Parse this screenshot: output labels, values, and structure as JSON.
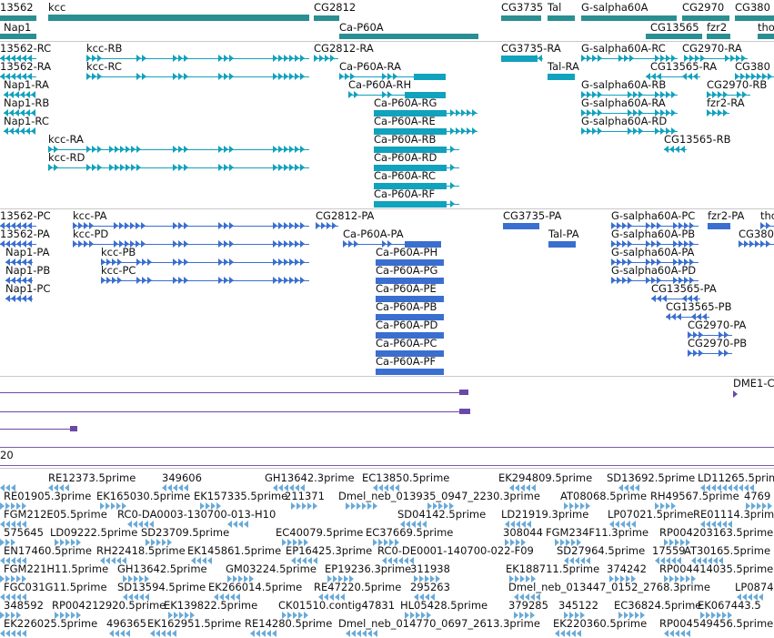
{
  "colors": {
    "gene": "#2a8f93",
    "transcript": "#11a2bd",
    "protein": "#3a6fd0",
    "track_purple": "#6b48a8",
    "est": "#6aaad8",
    "separator": "#c9c9c9"
  },
  "genes": {
    "labels": [
      "13562",
      "kcc",
      "CG2812",
      "CG3735",
      "Tal",
      "G-salpha60A",
      "CG2970",
      "CG380",
      "Nap1",
      "Ca-P60A",
      "CG13565",
      "fzr2",
      "tho"
    ]
  },
  "transcripts": {
    "labels": [
      "13562-RC",
      "kcc-RB",
      "CG2812-RA",
      "CG3735-RA",
      "G-salpha60A-RC",
      "CG2970-RA",
      "13562-RA",
      "kcc-RC",
      "Ca-P60A-RA",
      "Tal-RA",
      "CG13565-RA",
      "CG380",
      "Nap1-RA",
      "Ca-P60A-RH",
      "G-salpha60A-RB",
      "CG2970-RB",
      "Nap1-RB",
      "Ca-P60A-RG",
      "G-salpha60A-RA",
      "fzr2-RA",
      "Nap1-RC",
      "Ca-P60A-RE",
      "G-salpha60A-RD",
      "kcc-RA",
      "Ca-P60A-RB",
      "CG13565-RB",
      "kcc-RD",
      "Ca-P60A-RD",
      "Ca-P60A-RC",
      "Ca-P60A-RF"
    ]
  },
  "proteins": {
    "labels": [
      "13562-PC",
      "kcc-PA",
      "CG2812-PA",
      "CG3735-PA",
      "G-salpha60A-PC",
      "fzr2-PA",
      "tho",
      "13562-PA",
      "kcc-PD",
      "Ca-P60A-PA",
      "Tal-PA",
      "G-salpha60A-PB",
      "CG380",
      "Nap1-PA",
      "kcc-PB",
      "Ca-P60A-PH",
      "G-salpha60A-PA",
      "Nap1-PB",
      "kcc-PC",
      "Ca-P60A-PG",
      "G-salpha60A-PD",
      "Nap1-PC",
      "Ca-P60A-PE",
      "CG13565-PA",
      "Ca-P60A-PB",
      "CG13565-PB",
      "Ca-P60A-PD",
      "CG2970-PA",
      "Ca-P60A-PC",
      "CG2970-PB",
      "Ca-P60A-PF"
    ]
  },
  "tracks": {
    "dme_label": "DME1-C",
    "scale_label": "20"
  },
  "ests": {
    "labels": [
      "RE12373.5prime",
      "349606",
      "GH13642.3prime",
      "EC13850.5prime",
      "EK294809.5prime",
      "SD13692.5prime",
      "LD11265.5prime",
      "RE01905.3prime",
      "EK165030.5prime",
      "EK157335.5prime",
      "211371",
      "Dmel_neb_013935_0947_2230.3prime",
      "AT08068.5prime",
      "RH49567.5prime",
      "4769",
      "FGM212E05.5prime",
      "RC0-DA0003-130700-013-H10",
      "SD04142.5prime",
      "LD21919.3prime",
      "LP07021.5prime",
      "RE01114.3prime",
      "575645",
      "LD09222.5prime",
      "SD23709.5prime",
      "EC40079.5prime",
      "EC37669.5prime",
      "308044",
      "FGM234F11.3prime",
      "RP004203163.5prime",
      "EN17460.5prime",
      "RH22418.5prime",
      "EK145861.5prime",
      "EP16425.3prime",
      "RC0-DE0001-140700-022-F09",
      "SD27964.5prime",
      "17559",
      "AT30165.5prime",
      "FGM221H11.5prime",
      "GH13642.5prime",
      "GM03224.5prime",
      "EP19236.3prime",
      "311938",
      "EK188711.5prime",
      "374242",
      "RP004414035.5prime",
      "FGC031G11.5prime",
      "SD13594.5prime",
      "EK266014.5prime",
      "RE47220.5prime",
      "295263",
      "Dmel_neb_013447_0152_2768.3prime",
      "LP0874",
      "348592",
      "RP004212920.5prime",
      "EK139822.5prime",
      "CK01510.contig47831",
      "HL05428.5prime",
      "379285",
      "345122",
      "EC36824.5prime",
      "EK067443.5",
      "EK226025.5prime",
      "496365",
      "EK162951.5prime",
      "RE14280.5prime",
      "Dmel_neb_014770_0697_2613.3prime",
      "EK220360.5prime",
      "RP004549456.5prime"
    ]
  }
}
